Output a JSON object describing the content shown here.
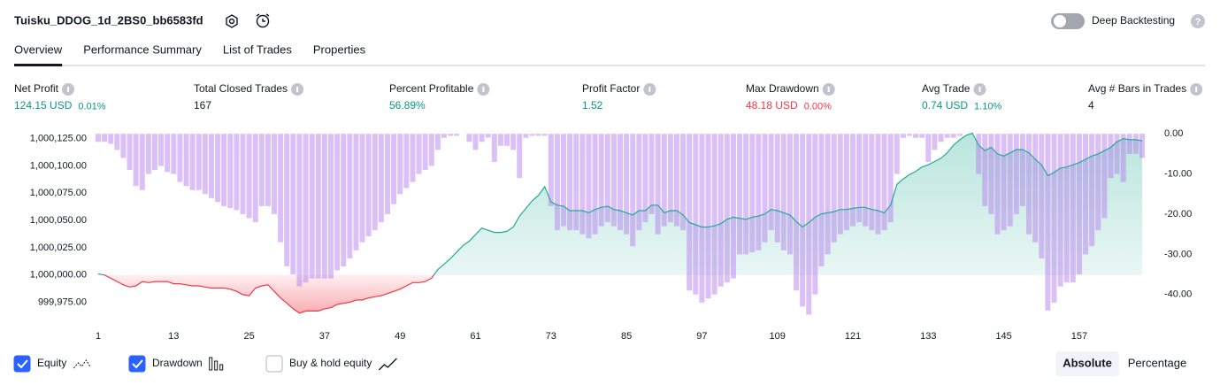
{
  "header": {
    "title": "Tuisku_DDOG_1d_2BS0_bb6583fd",
    "toggle_label": "Deep Backtesting",
    "toggle_on": false
  },
  "tabs": {
    "items": [
      "Overview",
      "Performance Summary",
      "List of Trades",
      "Properties"
    ],
    "active": 0
  },
  "metrics": [
    {
      "label": "Net Profit",
      "value": "124.15 USD",
      "change": "0.01%",
      "color": "#089981"
    },
    {
      "label": "Total Closed Trades",
      "value": "167",
      "color": "#131722"
    },
    {
      "label": "Percent Profitable",
      "value": "56.89%",
      "color": "#089981"
    },
    {
      "label": "Profit Factor",
      "value": "1.52",
      "color": "#089981"
    },
    {
      "label": "Max Drawdown",
      "value": "48.18 USD",
      "change": "0.00%",
      "color": "#f23645"
    },
    {
      "label": "Avg Trade",
      "value": "0.74 USD",
      "change": "1.10%",
      "color": "#089981"
    },
    {
      "label": "Avg # Bars in Trades",
      "value": "4",
      "color": "#131722"
    }
  ],
  "view_buttons": {
    "items": [
      "Absolute",
      "Percentage"
    ],
    "active": 0
  },
  "chart_data": {
    "type": "combo",
    "x": [
      1,
      2,
      3,
      4,
      5,
      6,
      7,
      8,
      9,
      10,
      11,
      12,
      13,
      14,
      15,
      16,
      17,
      18,
      19,
      20,
      21,
      22,
      23,
      24,
      25,
      26,
      27,
      28,
      29,
      30,
      31,
      32,
      33,
      34,
      35,
      36,
      37,
      38,
      39,
      40,
      41,
      42,
      43,
      44,
      45,
      46,
      47,
      48,
      49,
      50,
      51,
      52,
      53,
      54,
      55,
      56,
      57,
      58,
      59,
      60,
      61,
      62,
      63,
      64,
      65,
      66,
      67,
      68,
      69,
      70,
      71,
      72,
      73,
      74,
      75,
      76,
      77,
      78,
      79,
      80,
      81,
      82,
      83,
      84,
      85,
      86,
      87,
      88,
      89,
      90,
      91,
      92,
      93,
      94,
      95,
      96,
      97,
      98,
      99,
      100,
      101,
      102,
      103,
      104,
      105,
      106,
      107,
      108,
      109,
      110,
      111,
      112,
      113,
      114,
      115,
      116,
      117,
      118,
      119,
      120,
      121,
      122,
      123,
      124,
      125,
      126,
      127,
      128,
      129,
      130,
      131,
      132,
      133,
      134,
      135,
      136,
      137,
      138,
      139,
      140,
      141,
      142,
      143,
      144,
      145,
      146,
      147,
      148,
      149,
      150,
      151,
      152,
      153,
      154,
      155,
      156,
      157,
      158,
      159,
      160,
      161,
      162,
      163,
      164,
      165,
      166,
      167
    ],
    "xlim": [
      1,
      167
    ],
    "xticks": [
      1,
      13,
      25,
      37,
      49,
      61,
      73,
      85,
      97,
      109,
      121,
      133,
      145,
      157
    ],
    "ylim": [
      999960,
      1000132
    ],
    "yticks": [
      {
        "value": 999975,
        "label": "999,975.00"
      },
      {
        "value": 1000000,
        "label": "1,000,000.00"
      },
      {
        "value": 1000025,
        "label": "1,000,025.00"
      },
      {
        "value": 1000050,
        "label": "1,000,050.00"
      },
      {
        "value": 1000075,
        "label": "1,000,075.00"
      },
      {
        "value": 1000100,
        "label": "1,000,100.00"
      },
      {
        "value": 1000125,
        "label": "1,000,125.00"
      }
    ],
    "y2lim": [
      -46,
      0.7
    ],
    "y2ticks": [
      {
        "value": 0,
        "label": "0.00"
      },
      {
        "value": -10,
        "label": "-10.00"
      },
      {
        "value": -20,
        "label": "-20.00"
      },
      {
        "value": -30,
        "label": "-30.00"
      },
      {
        "value": -40,
        "label": "-40.00"
      }
    ],
    "grid": false,
    "series": [
      {
        "name": "Equity",
        "type": "area",
        "visible": true,
        "color": "#22ab94",
        "negative_color": "#f23645",
        "baseline": 1000000,
        "values": [
          1000001,
          1000000,
          999997,
          999994,
          999991,
          999989,
          999990,
          999994,
          999993,
          999994,
          999994,
          999994,
          999992,
          999992,
          999991,
          999990,
          999990,
          999989,
          999988,
          999988,
          999988,
          999987,
          999985,
          999982,
          999981,
          999988,
          999990,
          999991,
          999985,
          999979,
          999974,
          999969,
          999965,
          999967,
          999967,
          999967,
          999969,
          999970,
          999973,
          999974,
          999975,
          999977,
          999977,
          999979,
          999980,
          999981,
          999983,
          999985,
          999987,
          999990,
          999993,
          999993,
          999994,
          999997,
          1000005,
          1000010,
          1000015,
          1000021,
          1000027,
          1000031,
          1000037,
          1000043,
          1000041,
          1000039,
          1000039,
          1000040,
          1000044,
          1000054,
          1000061,
          1000068,
          1000073,
          1000081,
          1000067,
          1000064,
          1000063,
          1000059,
          1000059,
          1000059,
          1000057,
          1000060,
          1000062,
          1000063,
          1000060,
          1000059,
          1000057,
          1000055,
          1000059,
          1000059,
          1000064,
          1000064,
          1000057,
          1000059,
          1000059,
          1000055,
          1000048,
          1000046,
          1000044,
          1000044,
          1000045,
          1000047,
          1000051,
          1000053,
          1000052,
          1000051,
          1000053,
          1000054,
          1000056,
          1000060,
          1000059,
          1000057,
          1000055,
          1000049,
          1000044,
          1000048,
          1000053,
          1000056,
          1000057,
          1000058,
          1000060,
          1000060,
          1000061,
          1000062,
          1000062,
          1000060,
          1000059,
          1000057,
          1000064,
          1000083,
          1000088,
          1000092,
          1000095,
          1000099,
          1000101,
          1000104,
          1000107,
          1000112,
          1000119,
          1000124,
          1000128,
          1000130,
          1000119,
          1000114,
          1000117,
          1000111,
          1000109,
          1000112,
          1000115,
          1000115,
          1000112,
          1000106,
          1000101,
          1000091,
          1000094,
          1000098,
          1000099,
          1000101,
          1000103,
          1000106,
          1000109,
          1000111,
          1000114,
          1000117,
          1000122,
          1000125,
          1000124,
          1000124,
          1000123
        ]
      },
      {
        "name": "Drawdown",
        "type": "bar",
        "axis": "y2",
        "visible": true,
        "color": "#b77ff0",
        "values": [
          -2,
          -2,
          -2.5,
          -4,
          -6,
          -9,
          -13,
          -14,
          -10,
          -9,
          -8,
          -9.5,
          -10,
          -12,
          -13,
          -14,
          -14,
          -15,
          -16,
          -17,
          -18,
          -18.5,
          -19,
          -20,
          -21,
          -22,
          -18,
          -18,
          -20,
          -27,
          -33,
          -35,
          -38,
          -37,
          -36,
          -36,
          -36,
          -36,
          -34,
          -33,
          -31,
          -29,
          -27,
          -25.5,
          -24,
          -22,
          -20,
          -17.5,
          -15,
          -13.5,
          -12,
          -10,
          -9,
          -8,
          -4,
          -1,
          -0.5,
          -0.5,
          0,
          -2,
          -4,
          -2,
          -1,
          -7,
          -3,
          -3,
          -4,
          -11,
          -1,
          -0.5,
          -0.5,
          -0.5,
          -18,
          -24,
          -23,
          -24,
          -24,
          -25,
          -26,
          -25,
          -23,
          -22,
          -23,
          -24,
          -25,
          -28,
          -24,
          -22,
          -20,
          -25,
          -23,
          -22,
          -23,
          -24,
          -39,
          -40,
          -42,
          -41,
          -40,
          -38,
          -37,
          -36,
          -30,
          -30,
          -29.5,
          -29,
          -27,
          -24,
          -27,
          -29,
          -30,
          -39,
          -43,
          -45,
          -40,
          -33,
          -30,
          -27,
          -25,
          -24,
          -23,
          -22,
          -23,
          -24,
          -25,
          -24,
          -22,
          -10,
          -1,
          -0.5,
          -1,
          -1,
          -7,
          -4,
          -2,
          -1,
          -1,
          -0.5,
          0,
          0,
          -10,
          -18,
          -20,
          -25,
          -24,
          -23,
          -20,
          -18,
          -25,
          -27,
          -31,
          -44,
          -42,
          -38,
          -37,
          -37,
          -35,
          -30,
          -28,
          -24,
          -21,
          -11,
          -10,
          -12,
          -5,
          -5,
          -6
        ]
      },
      {
        "name": "Buy & hold equity",
        "type": "line",
        "visible": false,
        "color": "#131722"
      }
    ]
  }
}
